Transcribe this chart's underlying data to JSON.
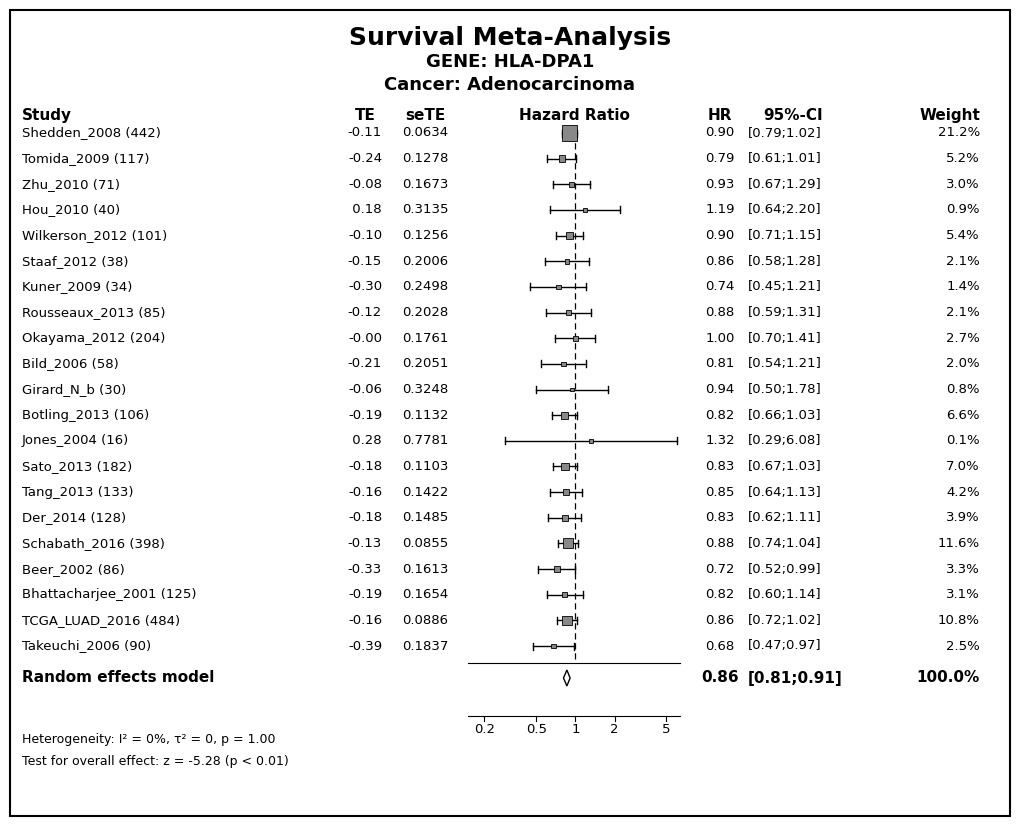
{
  "title1": "Survival Meta-Analysis",
  "title2": "GENE: HLA-DPA1",
  "title3": "Cancer: Adenocarcinoma",
  "studies": [
    {
      "name": "Shedden_2008 (442)",
      "TE": "-0.11",
      "seTE": "0.0634",
      "HR": 0.9,
      "ci_lo": 0.79,
      "ci_hi": 1.02,
      "weight": "21.2%"
    },
    {
      "name": "Tomida_2009 (117)",
      "TE": "-0.24",
      "seTE": "0.1278",
      "HR": 0.79,
      "ci_lo": 0.61,
      "ci_hi": 1.01,
      "weight": "5.2%"
    },
    {
      "name": "Zhu_2010 (71)",
      "TE": "-0.08",
      "seTE": "0.1673",
      "HR": 0.93,
      "ci_lo": 0.67,
      "ci_hi": 1.29,
      "weight": "3.0%"
    },
    {
      "name": "Hou_2010 (40)",
      "TE": " 0.18",
      "seTE": "0.3135",
      "HR": 1.19,
      "ci_lo": 0.64,
      "ci_hi": 2.2,
      "weight": "0.9%"
    },
    {
      "name": "Wilkerson_2012 (101)",
      "TE": "-0.10",
      "seTE": "0.1256",
      "HR": 0.9,
      "ci_lo": 0.71,
      "ci_hi": 1.15,
      "weight": "5.4%"
    },
    {
      "name": "Staaf_2012 (38)",
      "TE": "-0.15",
      "seTE": "0.2006",
      "HR": 0.86,
      "ci_lo": 0.58,
      "ci_hi": 1.28,
      "weight": "2.1%"
    },
    {
      "name": "Kuner_2009 (34)",
      "TE": "-0.30",
      "seTE": "0.2498",
      "HR": 0.74,
      "ci_lo": 0.45,
      "ci_hi": 1.21,
      "weight": "1.4%"
    },
    {
      "name": "Rousseaux_2013 (85)",
      "TE": "-0.12",
      "seTE": "0.2028",
      "HR": 0.88,
      "ci_lo": 0.59,
      "ci_hi": 1.31,
      "weight": "2.1%"
    },
    {
      "name": "Okayama_2012 (204)",
      "TE": "-0.00",
      "seTE": "0.1761",
      "HR": 1.0,
      "ci_lo": 0.7,
      "ci_hi": 1.41,
      "weight": "2.7%"
    },
    {
      "name": "Bild_2006 (58)",
      "TE": "-0.21",
      "seTE": "0.2051",
      "HR": 0.81,
      "ci_lo": 0.54,
      "ci_hi": 1.21,
      "weight": "2.0%"
    },
    {
      "name": "Girard_N_b (30)",
      "TE": "-0.06",
      "seTE": "0.3248",
      "HR": 0.94,
      "ci_lo": 0.5,
      "ci_hi": 1.78,
      "weight": "0.8%"
    },
    {
      "name": "Botling_2013 (106)",
      "TE": "-0.19",
      "seTE": "0.1132",
      "HR": 0.82,
      "ci_lo": 0.66,
      "ci_hi": 1.03,
      "weight": "6.6%"
    },
    {
      "name": "Jones_2004 (16)",
      "TE": " 0.28",
      "seTE": "0.7781",
      "HR": 1.32,
      "ci_lo": 0.29,
      "ci_hi": 6.08,
      "weight": "0.1%"
    },
    {
      "name": "Sato_2013 (182)",
      "TE": "-0.18",
      "seTE": "0.1103",
      "HR": 0.83,
      "ci_lo": 0.67,
      "ci_hi": 1.03,
      "weight": "7.0%"
    },
    {
      "name": "Tang_2013 (133)",
      "TE": "-0.16",
      "seTE": "0.1422",
      "HR": 0.85,
      "ci_lo": 0.64,
      "ci_hi": 1.13,
      "weight": "4.2%"
    },
    {
      "name": "Der_2014 (128)",
      "TE": "-0.18",
      "seTE": "0.1485",
      "HR": 0.83,
      "ci_lo": 0.62,
      "ci_hi": 1.11,
      "weight": "3.9%"
    },
    {
      "name": "Schabath_2016 (398)",
      "TE": "-0.13",
      "seTE": "0.0855",
      "HR": 0.88,
      "ci_lo": 0.74,
      "ci_hi": 1.04,
      "weight": "11.6%"
    },
    {
      "name": "Beer_2002 (86)",
      "TE": "-0.33",
      "seTE": "0.1613",
      "HR": 0.72,
      "ci_lo": 0.52,
      "ci_hi": 0.99,
      "weight": "3.3%"
    },
    {
      "name": "Bhattacharjee_2001 (125)",
      "TE": "-0.19",
      "seTE": "0.1654",
      "HR": 0.82,
      "ci_lo": 0.6,
      "ci_hi": 1.14,
      "weight": "3.1%"
    },
    {
      "name": "TCGA_LUAD_2016 (484)",
      "TE": "-0.16",
      "seTE": "0.0886",
      "HR": 0.86,
      "ci_lo": 0.72,
      "ci_hi": 1.02,
      "weight": "10.8%"
    },
    {
      "name": "Takeuchi_2006 (90)",
      "TE": "-0.39",
      "seTE": "0.1837",
      "HR": 0.68,
      "ci_lo": 0.47,
      "ci_hi": 0.97,
      "weight": "2.5%"
    }
  ],
  "summary": {
    "HR": 0.86,
    "ci_lo": 0.81,
    "ci_hi": 0.91,
    "weight": "100.0%"
  },
  "heterogeneity_text": "Heterogeneity: I² = 0%, τ² = 0, p = 1.00",
  "overall_effect_text": "Test for overall effect: z = -5.28 (p < 0.01)",
  "x_ticks": [
    0.2,
    0.5,
    1,
    2,
    5
  ],
  "forest_log_min": -1.9,
  "forest_log_max": 1.85,
  "bg_color": "#ffffff"
}
